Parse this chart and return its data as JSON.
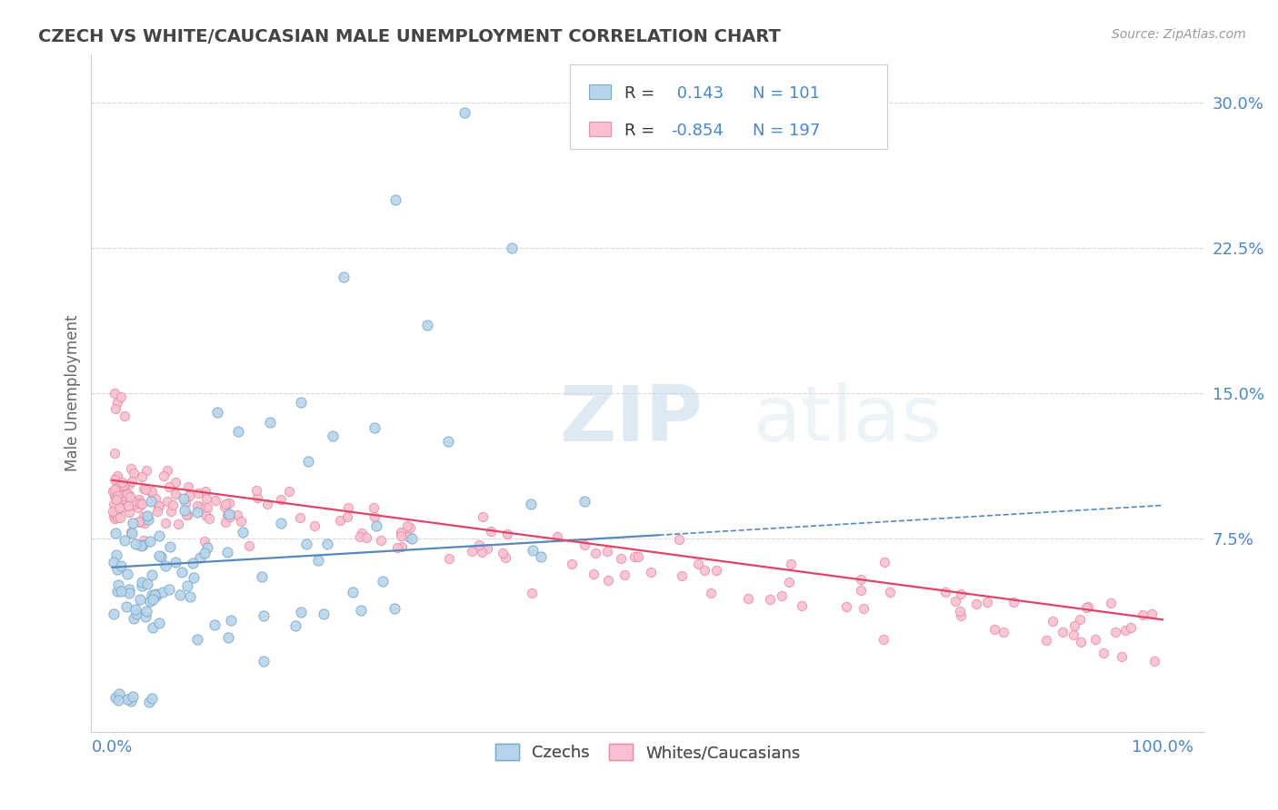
{
  "title": "CZECH VS WHITE/CAUCASIAN MALE UNEMPLOYMENT CORRELATION CHART",
  "source": "Source: ZipAtlas.com",
  "ylabel": "Male Unemployment",
  "yticks": [
    0.075,
    0.15,
    0.225,
    0.3
  ],
  "ytick_labels": [
    "7.5%",
    "15.0%",
    "22.5%",
    "30.0%"
  ],
  "xtick_labels": [
    "0.0%",
    "100.0%"
  ],
  "xlim": [
    -0.02,
    1.04
  ],
  "ylim": [
    -0.025,
    0.325
  ],
  "czech_color": "#b8d4ea",
  "czech_edge_color": "#7aaac8",
  "white_color": "#f8c0d0",
  "white_edge_color": "#e890a8",
  "czech_R": 0.143,
  "czech_N": 101,
  "white_R": -0.854,
  "white_N": 197,
  "legend_label_czech": "Czechs",
  "legend_label_white": "Whites/Caucasians",
  "watermark_zip": "ZIP",
  "watermark_atlas": "atlas",
  "background_color": "#ffffff",
  "grid_color": "#d8d8d8",
  "title_color": "#444444",
  "axis_label_color": "#4a86c8",
  "czech_line_color": "#5588bb",
  "white_line_color": "#e04466",
  "czech_line_solid_end": 0.52,
  "czech_line_dash_start": 0.52
}
